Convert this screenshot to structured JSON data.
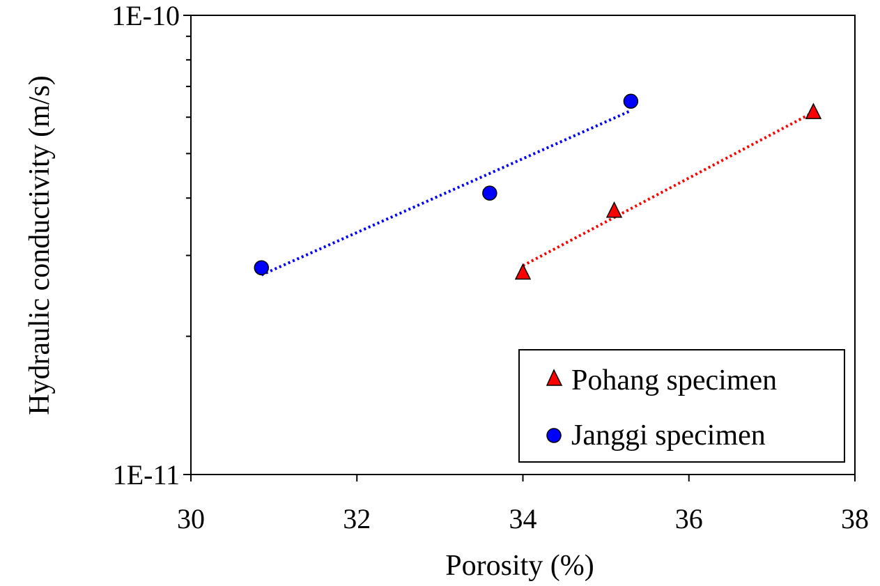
{
  "chart_data": {
    "type": "scatter",
    "title": "",
    "xlabel": "Porosity (%)",
    "ylabel": "Hydraulic conductivity (m/s)",
    "xlim": [
      30,
      38
    ],
    "ylim": [
      1e-11,
      1e-10
    ],
    "yscale": "log",
    "xticks": [
      30,
      32,
      34,
      36,
      38
    ],
    "xtick_labels": [
      "30",
      "32",
      "34",
      "36",
      "38"
    ],
    "yticks": [
      1e-11,
      1e-10
    ],
    "ytick_labels": [
      "1E-11",
      "1E-10"
    ],
    "yminor_ticks": [
      2e-11,
      3e-11,
      4e-11,
      5e-11,
      6e-11,
      7e-11,
      8e-11,
      9e-11
    ],
    "grid": false,
    "legend_position": "bottom-right",
    "series": [
      {
        "name": "Pohang specimen",
        "marker": "triangle",
        "color": "#ff0000",
        "trendline_color": "#ff0000",
        "trendline": "exponential",
        "x": [
          34.0,
          35.1,
          37.5
        ],
        "y": [
          2.75e-11,
          3.75e-11,
          6.15e-11
        ],
        "trend_x": [
          34.0,
          37.5
        ],
        "trend_y": [
          2.85e-11,
          6.15e-11
        ]
      },
      {
        "name": "Janggi specimen",
        "marker": "circle",
        "color": "#0000ff",
        "trendline_color": "#0000ff",
        "trendline": "exponential",
        "x": [
          30.85,
          33.6,
          35.3
        ],
        "y": [
          2.82e-11,
          4.1e-11,
          6.5e-11
        ],
        "trend_x": [
          30.85,
          35.3
        ],
        "trend_y": [
          2.72e-11,
          6.2e-11
        ]
      }
    ]
  }
}
